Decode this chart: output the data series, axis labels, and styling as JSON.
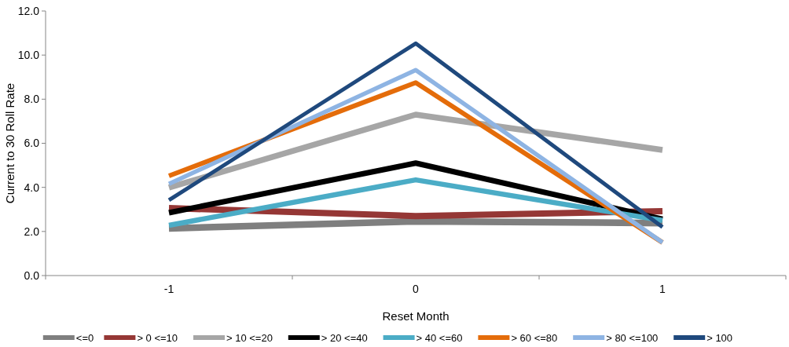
{
  "chart_data": {
    "type": "line",
    "xlabel": "Reset Month",
    "ylabel": "Current to 30 Roll Rate",
    "categories": [
      "-1",
      "0",
      "1"
    ],
    "ylim": [
      0,
      12
    ],
    "yticks": [
      {
        "value": 0,
        "label": "0.0"
      },
      {
        "value": 2,
        "label": "2.0"
      },
      {
        "value": 4,
        "label": "4.0"
      },
      {
        "value": 6,
        "label": "6.0"
      },
      {
        "value": 8,
        "label": "8.0"
      },
      {
        "value": 10,
        "label": "10.0"
      },
      {
        "value": 12,
        "label": "12.0"
      }
    ],
    "grid": false,
    "legend": "bottom",
    "marker": "none",
    "line_style": "solid",
    "series": [
      {
        "name": "<=0",
        "color": "#7f7f7f",
        "values": [
          2.14,
          2.46,
          2.38
        ]
      },
      {
        "name": "> 0 <=10",
        "color": "#953735",
        "values": [
          3.06,
          2.7,
          2.92
        ]
      },
      {
        "name": "> 10 <=20",
        "color": "#a6a6a6",
        "values": [
          3.99,
          7.3,
          5.7
        ]
      },
      {
        "name": "> 20 <=40",
        "color": "#000000",
        "values": [
          2.85,
          5.1,
          2.56
        ]
      },
      {
        "name": "> 40 <=60",
        "color": "#4bacc6",
        "values": [
          2.28,
          4.34,
          2.5
        ]
      },
      {
        "name": "> 60 <=80",
        "color": "#e46c0a",
        "values": [
          4.52,
          8.75,
          1.5
        ]
      },
      {
        "name": "> 80 <=100",
        "color": "#8eb4e3",
        "values": [
          4.16,
          9.32,
          1.5
        ]
      },
      {
        "name": "> 100",
        "color": "#1f497d",
        "values": [
          3.42,
          10.53,
          2.2
        ]
      }
    ]
  }
}
